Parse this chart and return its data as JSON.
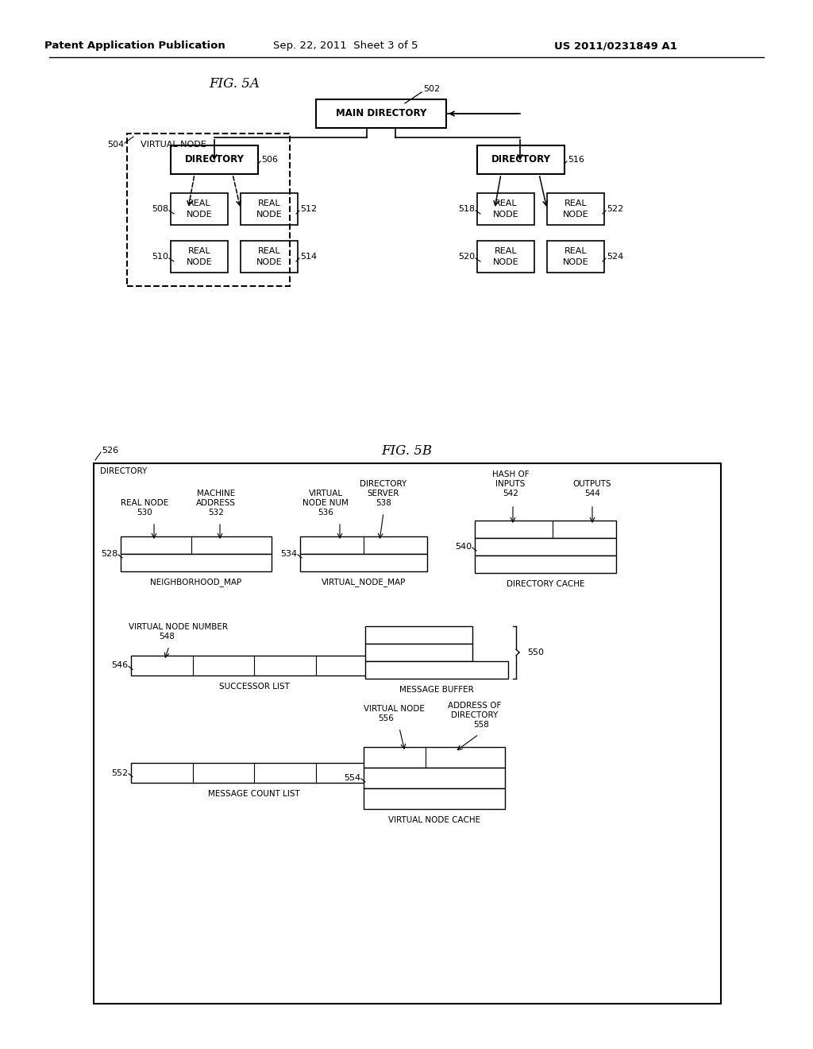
{
  "bg_color": "#ffffff",
  "header_text1": "Patent Application Publication",
  "header_text2": "Sep. 22, 2011  Sheet 3 of 5",
  "header_text3": "US 2011/0231849 A1"
}
